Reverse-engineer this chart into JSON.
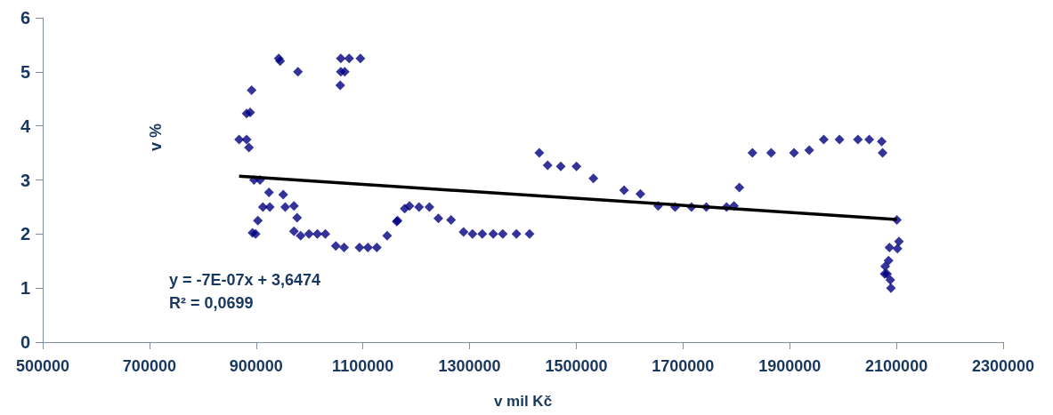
{
  "chart_data": {
    "type": "scatter",
    "xlabel": "v mil Kč",
    "ylabel": "v %",
    "xlim": [
      500000,
      2300000
    ],
    "xticks": [
      500000,
      700000,
      900000,
      1100000,
      1300000,
      1500000,
      1700000,
      1900000,
      2100000,
      2300000
    ],
    "ylim": [
      0,
      6
    ],
    "yticks": [
      0,
      1,
      2,
      3,
      4,
      5,
      6
    ],
    "grid": false,
    "marker": "diamond",
    "annotations": [
      "y = -7E-07x + 3,6474",
      "R² = 0,0699"
    ],
    "series": [
      {
        "color": "#000080",
        "x": [
          942300,
          945000,
          978400,
          1058600,
          1074300,
          1095400,
          1058600,
          1066000,
          1057600,
          891500,
          882100,
          888800,
          868100,
          882100,
          886500,
          896000,
          907200,
          924000,
          950700,
          912700,
          925600,
          954500,
          970900,
          903200,
          976700,
          893200,
          899000,
          970900,
          983400,
          999100,
          1014700,
          1029700,
          1049300,
          1064800,
          1093700,
          1109400,
          1126100,
          1145500,
          1163400,
          1165000,
          1178400,
          1187300,
          1205200,
          1224700,
          1241500,
          1265300,
          1288700,
          1305400,
          1323800,
          1344300,
          1362200,
          1387800,
          1412400,
          1430700,
          1446300,
          1470900,
          1500300,
          1532100,
          1589500,
          1620100,
          1653500,
          1685200,
          1715900,
          1743700,
          1781600,
          1795500,
          1805600,
          1830100,
          1865200,
          1908100,
          1936500,
          1963800,
          1993300,
          2027800,
          2049000,
          2072400,
          2074100,
          2100800,
          2104700,
          2101900,
          2086900,
          2085200,
          2079000,
          2082400,
          2078000,
          2088500,
          2089700
        ],
        "values": [
          5.25,
          5.2,
          5.0,
          5.25,
          5.25,
          5.25,
          5.0,
          5.0,
          4.75,
          4.66,
          4.23,
          4.25,
          3.75,
          3.75,
          3.6,
          3.0,
          3.0,
          2.77,
          2.73,
          2.5,
          2.5,
          2.5,
          2.52,
          2.25,
          2.3,
          2.02,
          2.0,
          2.05,
          1.97,
          2.0,
          2.0,
          2.0,
          1.78,
          1.75,
          1.75,
          1.75,
          1.75,
          1.97,
          2.23,
          2.25,
          2.47,
          2.52,
          2.5,
          2.5,
          2.29,
          2.26,
          2.04,
          2.0,
          2.0,
          2.0,
          2.0,
          2.0,
          2.0,
          3.5,
          3.27,
          3.25,
          3.25,
          3.03,
          2.81,
          2.74,
          2.52,
          2.5,
          2.5,
          2.5,
          2.5,
          2.52,
          2.86,
          3.5,
          3.5,
          3.5,
          3.55,
          3.75,
          3.75,
          3.75,
          3.75,
          3.71,
          3.5,
          2.26,
          1.86,
          1.73,
          1.75,
          1.51,
          1.4,
          1.26,
          1.26,
          1.15,
          1.0
        ]
      },
      {
        "type": "line",
        "color": "#000000",
        "marker": "none",
        "x": [
          868000,
          2100800
        ],
        "values": [
          3.07,
          2.27
        ]
      }
    ]
  }
}
